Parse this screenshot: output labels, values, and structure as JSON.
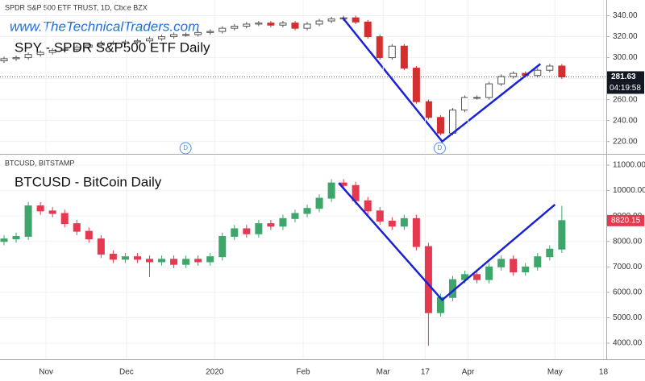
{
  "chart_data": [
    {
      "type": "candlestick",
      "title": "SPDR S&P 500 ETF TRUST, 1D, Cboe BZX",
      "watermark": "www.TheTechnicalTraders.com",
      "annotation": "SPY - SPDR S&P500 ETF Daily",
      "last_time": "04:19:58",
      "up_color": "#555555",
      "down_color": "#d32f2f",
      "trend_color": "#1a22d6",
      "xlim": [
        0,
        150
      ],
      "ylim": [
        209,
        355
      ],
      "yticks": [
        {
          "value": 220,
          "label": "220.00"
        },
        {
          "value": 240,
          "label": "240.00"
        },
        {
          "value": 260,
          "label": "260.00"
        },
        {
          "value": 280,
          "label": "280.00"
        },
        {
          "value": 300,
          "label": "300.00"
        },
        {
          "value": 320,
          "label": "320.00"
        },
        {
          "value": 340,
          "label": "340.00"
        }
      ],
      "x": [
        1,
        4,
        7,
        10,
        13,
        16,
        19,
        22,
        25,
        28,
        31,
        34,
        37,
        40,
        43,
        46,
        49,
        52,
        55,
        58,
        61,
        64,
        67,
        70,
        73,
        76,
        79,
        82,
        85,
        88,
        91,
        94,
        97,
        100,
        103,
        106,
        109,
        112,
        115,
        118,
        121,
        124,
        127,
        130,
        133,
        136,
        139
      ],
      "open": [
        297,
        299,
        300,
        303,
        305,
        307,
        308,
        310,
        312,
        314,
        314,
        315,
        316,
        318,
        320,
        322,
        322,
        324,
        325,
        328,
        330,
        332,
        333,
        331,
        333,
        328,
        332,
        335,
        337,
        338,
        334,
        320,
        300,
        311,
        290,
        258,
        243,
        228,
        250,
        262,
        262,
        275,
        282,
        285,
        283,
        288,
        292
      ],
      "high": [
        301,
        302,
        305,
        307,
        309,
        310,
        312,
        314,
        316,
        316,
        317,
        318,
        320,
        322,
        324,
        324,
        326,
        327,
        330,
        332,
        334,
        335,
        335,
        335,
        335,
        334,
        337,
        339,
        340,
        340,
        336,
        322,
        313,
        313,
        292,
        260,
        245,
        252,
        264,
        264,
        277,
        284,
        287,
        287,
        290,
        294,
        294
      ],
      "low": [
        295,
        297,
        298,
        301,
        303,
        305,
        306,
        308,
        310,
        312,
        312,
        313,
        314,
        316,
        318,
        320,
        320,
        322,
        323,
        326,
        328,
        330,
        329,
        329,
        326,
        326,
        330,
        333,
        335,
        332,
        318,
        298,
        298,
        288,
        256,
        241,
        226,
        226,
        248,
        260,
        260,
        273,
        280,
        281,
        281,
        286,
        279.63
      ],
      "close": [
        299,
        300,
        303,
        305,
        307,
        308,
        310,
        312,
        314,
        314,
        315,
        316,
        318,
        320,
        322,
        322,
        324,
        325,
        328,
        330,
        332,
        333,
        331,
        333,
        328,
        332,
        335,
        337,
        338,
        334,
        320,
        300,
        311,
        290,
        258,
        243,
        228,
        250,
        262,
        262,
        275,
        282,
        285,
        283,
        288,
        292,
        281.63
      ],
      "trendline": {
        "x": [
          84.8,
          109.4,
          133.7
        ],
        "y": [
          338,
          220,
          294
        ]
      },
      "events": [
        {
          "x": 45.9,
          "label": "D"
        },
        {
          "x": 108.8,
          "label": "D"
        }
      ]
    },
    {
      "type": "candlestick",
      "title": "BTCUSD, BITSTAMP",
      "annotation": "BTCUSD - BitCoin Daily",
      "up_color": "#3fa66b",
      "down_color": "#e53950",
      "trend_color": "#1a22d6",
      "xlim": [
        0,
        150
      ],
      "ylim": [
        3370,
        11380
      ],
      "yticks": [
        {
          "value": 4000,
          "label": "4000.00"
        },
        {
          "value": 5000,
          "label": "5000.00"
        },
        {
          "value": 6000,
          "label": "6000.00"
        },
        {
          "value": 7000,
          "label": "7000.00"
        },
        {
          "value": 8000,
          "label": "8000.00"
        },
        {
          "value": 9000,
          "label": "9000.00"
        },
        {
          "value": 10000,
          "label": "10000.00"
        },
        {
          "value": 11000,
          "label": "11000.00"
        }
      ],
      "xticks": [
        {
          "value": 11.4,
          "label": "Nov"
        },
        {
          "value": 31.3,
          "label": "Dec"
        },
        {
          "value": 53.1,
          "label": "2020"
        },
        {
          "value": 75,
          "label": "Feb"
        },
        {
          "value": 94.8,
          "label": "Mar"
        },
        {
          "value": 105.2,
          "label": "17"
        },
        {
          "value": 115.8,
          "label": "Apr"
        },
        {
          "value": 137.3,
          "label": "May"
        },
        {
          "value": 149.3,
          "label": "18"
        }
      ],
      "x": [
        1,
        4,
        7,
        10,
        13,
        16,
        19,
        22,
        25,
        28,
        31,
        34,
        37,
        40,
        43,
        46,
        49,
        52,
        55,
        58,
        61,
        64,
        67,
        70,
        73,
        76,
        79,
        82,
        85,
        88,
        91,
        94,
        97,
        100,
        103,
        106,
        109,
        112,
        115,
        118,
        121,
        124,
        127,
        130,
        133,
        136,
        139
      ],
      "open": [
        8000,
        8100,
        8200,
        9400,
        9200,
        9100,
        8700,
        8400,
        8100,
        7500,
        7300,
        7400,
        7300,
        7200,
        7300,
        7100,
        7300,
        7200,
        7400,
        8200,
        8500,
        8300,
        8700,
        8600,
        8900,
        9100,
        9300,
        9700,
        10300,
        10200,
        9600,
        9200,
        8800,
        8600,
        8900,
        7800,
        5200,
        5800,
        6500,
        6700,
        6500,
        7000,
        7300,
        6800,
        7000,
        7400,
        7700
      ],
      "high": [
        8250,
        8350,
        9550,
        9550,
        9350,
        9250,
        8850,
        8550,
        8250,
        7650,
        7550,
        7550,
        7450,
        7450,
        7450,
        7450,
        7450,
        7550,
        8350,
        8650,
        8650,
        8850,
        8850,
        9050,
        9250,
        9450,
        9850,
        10450,
        10450,
        10350,
        9750,
        9350,
        8950,
        9050,
        9050,
        7950,
        5950,
        6650,
        6850,
        6850,
        7150,
        7450,
        7450,
        7150,
        7550,
        7850,
        9400
      ],
      "low": [
        7850,
        7950,
        8050,
        9050,
        8950,
        8550,
        8250,
        7950,
        7350,
        7150,
        7150,
        7150,
        6600,
        7050,
        6950,
        6950,
        7050,
        7050,
        7250,
        8050,
        8150,
        8150,
        8450,
        8450,
        8750,
        8950,
        9150,
        9550,
        10050,
        9450,
        9050,
        8650,
        8450,
        8450,
        7650,
        3900,
        5050,
        5650,
        6350,
        6350,
        6350,
        6850,
        6650,
        6650,
        6850,
        7250,
        7550
      ],
      "close": [
        8100,
        8200,
        9400,
        9200,
        9100,
        8700,
        8400,
        8100,
        7500,
        7300,
        7400,
        7300,
        7200,
        7300,
        7100,
        7300,
        7200,
        7400,
        8200,
        8500,
        8300,
        8700,
        8600,
        8900,
        9100,
        9300,
        9700,
        10300,
        10200,
        9600,
        9200,
        8800,
        8600,
        8900,
        7800,
        5200,
        5800,
        6500,
        6700,
        6500,
        7000,
        7300,
        6800,
        7000,
        7400,
        7700,
        8820.15
      ],
      "trendline": {
        "x": [
          83.8,
          109.4,
          137.3
        ],
        "y": [
          10300,
          5700,
          9450
        ]
      }
    }
  ]
}
